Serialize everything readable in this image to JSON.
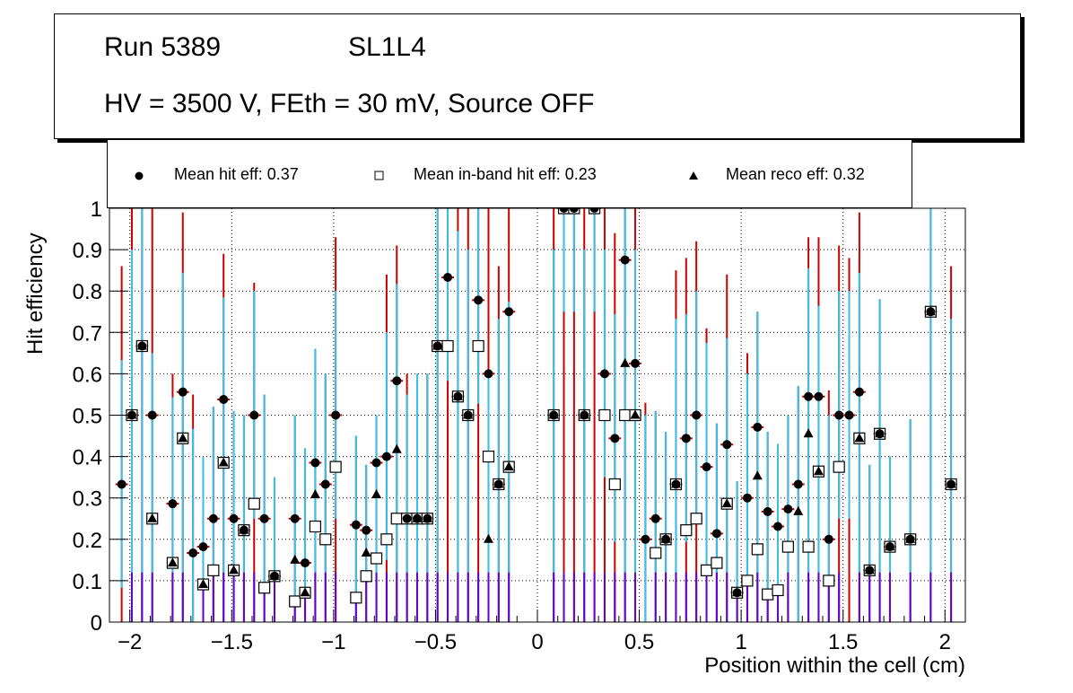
{
  "title_box": {
    "run": "Run 5389",
    "layer": "SL1L4",
    "conditions": "HV = 3500 V, FEth = 30 mV, Source OFF"
  },
  "legend": {
    "hit": "Mean hit  eff: 0.37",
    "inband": "Mean in-band hit eff: 0.23",
    "reco": "Mean reco eff: 0.32"
  },
  "colors": {
    "hit_err": "#cc0000",
    "reco_err": "#33c3ee",
    "inband_err": "#6600cc",
    "marker": "#000000"
  },
  "chart_data": {
    "type": "scatter",
    "title": "Run 5389 SL1L4 — HV = 3500 V, FEth = 30 mV, Source OFF",
    "xlabel": "Position within the cell (cm)",
    "ylabel": "Hit efficiency",
    "xlim": [
      -2.1,
      2.1
    ],
    "ylim": [
      0,
      1
    ],
    "grid": true,
    "legend_position": "top",
    "x_ticks": [
      "-2",
      "-1.5",
      "-1",
      "-0.5",
      "0",
      "0.5",
      "1",
      "1.5",
      "2"
    ],
    "x_tick_values": [
      -2,
      -1.5,
      -1,
      -0.5,
      0,
      0.5,
      1,
      1.5,
      2
    ],
    "y_ticks": [
      "0",
      "0.1",
      "0.2",
      "0.3",
      "0.4",
      "0.5",
      "0.6",
      "0.7",
      "0.8",
      "0.9",
      "1"
    ],
    "y_tick_values": [
      0,
      0.1,
      0.2,
      0.3,
      0.4,
      0.5,
      0.6,
      0.7,
      0.8,
      0.9,
      1
    ],
    "series": [
      {
        "name": "Mean hit eff",
        "marker": "circle",
        "mean": 0.37,
        "points": [
          {
            "x": -2.04,
            "y": 0.333,
            "lo": 0.0,
            "hi": 0.86
          },
          {
            "x": -1.99,
            "y": 0.5,
            "lo": 0.0,
            "hi": 1.0
          },
          {
            "x": -1.94,
            "y": 0.667,
            "lo": 0.0,
            "hi": 1.0
          },
          {
            "x": -1.89,
            "y": 0.5,
            "lo": 0.0,
            "hi": 1.0
          },
          {
            "x": -1.79,
            "y": 0.286,
            "lo": 0.0,
            "hi": 0.6
          },
          {
            "x": -1.74,
            "y": 0.556,
            "lo": 0.0,
            "hi": 0.99
          },
          {
            "x": -1.69,
            "y": 0.167,
            "lo": 0.0,
            "hi": 0.55
          },
          {
            "x": -1.64,
            "y": 0.182,
            "lo": 0.0,
            "hi": 0.4
          },
          {
            "x": -1.59,
            "y": 0.25,
            "lo": 0.0,
            "hi": 0.52
          },
          {
            "x": -1.54,
            "y": 0.538,
            "lo": 0.0,
            "hi": 0.89
          },
          {
            "x": -1.49,
            "y": 0.25,
            "lo": 0.0,
            "hi": 0.51
          },
          {
            "x": -1.44,
            "y": 0.222,
            "lo": 0.0,
            "hi": 0.5
          },
          {
            "x": -1.39,
            "y": 0.5,
            "lo": 0.0,
            "hi": 0.82
          },
          {
            "x": -1.34,
            "y": 0.25,
            "lo": 0.0,
            "hi": 0.55
          },
          {
            "x": -1.29,
            "y": 0.111,
            "lo": 0.0,
            "hi": 0.35
          },
          {
            "x": -1.19,
            "y": 0.25,
            "lo": 0.0,
            "hi": 0.5
          },
          {
            "x": -1.14,
            "y": 0.143,
            "lo": 0.0,
            "hi": 0.42
          },
          {
            "x": -1.09,
            "y": 0.385,
            "lo": 0.0,
            "hi": 0.66
          },
          {
            "x": -1.04,
            "y": 0.333,
            "lo": 0.0,
            "hi": 0.6
          },
          {
            "x": -0.99,
            "y": 0.5,
            "lo": 0.0,
            "hi": 0.93
          },
          {
            "x": -0.89,
            "y": 0.235,
            "lo": 0.0,
            "hi": 0.45
          },
          {
            "x": -0.84,
            "y": 0.222,
            "lo": 0.0,
            "hi": 0.38
          },
          {
            "x": -0.79,
            "y": 0.385,
            "lo": 0.0,
            "hi": 0.5
          },
          {
            "x": -0.74,
            "y": 0.4,
            "lo": 0.0,
            "hi": 0.84
          },
          {
            "x": -0.69,
            "y": 0.583,
            "lo": 0.0,
            "hi": 0.91
          },
          {
            "x": -0.64,
            "y": 0.25,
            "lo": 0.0,
            "hi": 0.6
          },
          {
            "x": -0.59,
            "y": 0.25,
            "lo": 0.0,
            "hi": 0.6
          },
          {
            "x": -0.54,
            "y": 0.25,
            "lo": 0.0,
            "hi": 0.6
          },
          {
            "x": -0.49,
            "y": 0.667,
            "lo": 0.0,
            "hi": 1.0
          },
          {
            "x": -0.44,
            "y": 0.833,
            "lo": 0.0,
            "hi": 1.0
          },
          {
            "x": -0.39,
            "y": 0.545,
            "lo": 0.0,
            "hi": 1.0
          },
          {
            "x": -0.34,
            "y": 0.5,
            "lo": 0.0,
            "hi": 1.0
          },
          {
            "x": -0.29,
            "y": 0.778,
            "lo": 0.0,
            "hi": 1.0
          },
          {
            "x": -0.24,
            "y": 0.6,
            "lo": 0.0,
            "hi": 1.0
          },
          {
            "x": -0.19,
            "y": 0.333,
            "lo": 0.0,
            "hi": 0.86
          },
          {
            "x": -0.14,
            "y": 0.75,
            "lo": 0.0,
            "hi": 1.0
          },
          {
            "x": 0.08,
            "y": 0.5,
            "lo": 0.0,
            "hi": 1.0
          },
          {
            "x": 0.13,
            "y": 1.0,
            "lo": 0.0,
            "hi": 1.0
          },
          {
            "x": 0.18,
            "y": 1.0,
            "lo": 0.0,
            "hi": 1.0
          },
          {
            "x": 0.23,
            "y": 0.5,
            "lo": 0.0,
            "hi": 1.0
          },
          {
            "x": 0.28,
            "y": 1.0,
            "lo": 0.0,
            "hi": 1.0
          },
          {
            "x": 0.33,
            "y": 0.6,
            "lo": 0.0,
            "hi": 1.0
          },
          {
            "x": 0.38,
            "y": 0.444,
            "lo": 0.0,
            "hi": 0.94
          },
          {
            "x": 0.43,
            "y": 0.875,
            "lo": 0.0,
            "hi": 1.0
          },
          {
            "x": 0.48,
            "y": 0.625,
            "lo": 0.0,
            "hi": 1.0
          },
          {
            "x": 0.53,
            "y": 0.2,
            "lo": 0.0,
            "hi": 0.53
          },
          {
            "x": 0.58,
            "y": 0.25,
            "lo": 0.0,
            "hi": 0.51
          },
          {
            "x": 0.63,
            "y": 0.2,
            "lo": 0.0,
            "hi": 0.46
          },
          {
            "x": 0.68,
            "y": 0.333,
            "lo": 0.0,
            "hi": 0.85
          },
          {
            "x": 0.73,
            "y": 0.444,
            "lo": 0.0,
            "hi": 0.88
          },
          {
            "x": 0.78,
            "y": 0.5,
            "lo": 0.0,
            "hi": 0.92
          },
          {
            "x": 0.83,
            "y": 0.375,
            "lo": 0.0,
            "hi": 0.71
          },
          {
            "x": 0.88,
            "y": 0.214,
            "lo": 0.0,
            "hi": 0.48
          },
          {
            "x": 0.93,
            "y": 0.429,
            "lo": 0.0,
            "hi": 0.84
          },
          {
            "x": 0.98,
            "y": 0.071,
            "lo": 0.0,
            "hi": 0.34
          },
          {
            "x": 1.03,
            "y": 0.3,
            "lo": 0.0,
            "hi": 0.65
          },
          {
            "x": 1.08,
            "y": 0.471,
            "lo": 0.0,
            "hi": 0.75
          },
          {
            "x": 1.13,
            "y": 0.267,
            "lo": 0.0,
            "hi": 0.46
          },
          {
            "x": 1.18,
            "y": 0.231,
            "lo": 0.0,
            "hi": 0.43
          },
          {
            "x": 1.23,
            "y": 0.273,
            "lo": 0.0,
            "hi": 0.5
          },
          {
            "x": 1.28,
            "y": 0.333,
            "lo": 0.0,
            "hi": 0.57
          },
          {
            "x": 1.33,
            "y": 0.545,
            "lo": 0.0,
            "hi": 0.93
          },
          {
            "x": 1.38,
            "y": 0.545,
            "lo": 0.0,
            "hi": 0.93
          },
          {
            "x": 1.43,
            "y": 0.2,
            "lo": 0.0,
            "hi": 0.56
          },
          {
            "x": 1.48,
            "y": 0.5,
            "lo": 0.0,
            "hi": 0.91
          },
          {
            "x": 1.53,
            "y": 0.5,
            "lo": 0.0,
            "hi": 0.88
          },
          {
            "x": 1.58,
            "y": 0.556,
            "lo": 0.0,
            "hi": 0.99
          },
          {
            "x": 1.63,
            "y": 0.125,
            "lo": 0.0,
            "hi": 0.38
          },
          {
            "x": 1.68,
            "y": 0.455,
            "lo": 0.0,
            "hi": 0.78
          },
          {
            "x": 1.73,
            "y": 0.182,
            "lo": 0.0,
            "hi": 0.4
          },
          {
            "x": 1.83,
            "y": 0.2,
            "lo": 0.0,
            "hi": 0.49
          },
          {
            "x": 1.93,
            "y": 0.75,
            "lo": 0.0,
            "hi": 1.0
          },
          {
            "x": 2.03,
            "y": 0.333,
            "lo": 0.0,
            "hi": 0.86
          }
        ]
      },
      {
        "name": "Mean in-band hit eff",
        "marker": "open-square",
        "mean": 0.23,
        "points": [
          {
            "x": -1.99,
            "y": 0.5
          },
          {
            "x": -1.94,
            "y": 0.667
          },
          {
            "x": -1.89,
            "y": 0.25
          },
          {
            "x": -1.79,
            "y": 0.143
          },
          {
            "x": -1.74,
            "y": 0.444
          },
          {
            "x": -1.64,
            "y": 0.091
          },
          {
            "x": -1.59,
            "y": 0.125
          },
          {
            "x": -1.54,
            "y": 0.385
          },
          {
            "x": -1.49,
            "y": 0.125
          },
          {
            "x": -1.44,
            "y": 0.222
          },
          {
            "x": -1.39,
            "y": 0.286
          },
          {
            "x": -1.34,
            "y": 0.083
          },
          {
            "x": -1.29,
            "y": 0.111
          },
          {
            "x": -1.19,
            "y": 0.05
          },
          {
            "x": -1.14,
            "y": 0.071
          },
          {
            "x": -1.09,
            "y": 0.231
          },
          {
            "x": -1.04,
            "y": 0.2
          },
          {
            "x": -0.99,
            "y": 0.375
          },
          {
            "x": -0.89,
            "y": 0.059
          },
          {
            "x": -0.84,
            "y": 0.111
          },
          {
            "x": -0.79,
            "y": 0.154
          },
          {
            "x": -0.74,
            "y": 0.2
          },
          {
            "x": -0.69,
            "y": 0.25
          },
          {
            "x": -0.64,
            "y": 0.25
          },
          {
            "x": -0.59,
            "y": 0.25
          },
          {
            "x": -0.54,
            "y": 0.25
          },
          {
            "x": -0.49,
            "y": 0.667
          },
          {
            "x": -0.44,
            "y": 0.667
          },
          {
            "x": -0.39,
            "y": 0.545
          },
          {
            "x": -0.34,
            "y": 0.5
          },
          {
            "x": -0.29,
            "y": 0.667
          },
          {
            "x": -0.24,
            "y": 0.4
          },
          {
            "x": -0.19,
            "y": 0.333
          },
          {
            "x": -0.14,
            "y": 0.375
          },
          {
            "x": 0.08,
            "y": 0.5
          },
          {
            "x": 0.13,
            "y": 1.0
          },
          {
            "x": 0.18,
            "y": 1.0
          },
          {
            "x": 0.23,
            "y": 0.5
          },
          {
            "x": 0.28,
            "y": 1.0
          },
          {
            "x": 0.33,
            "y": 0.5
          },
          {
            "x": 0.38,
            "y": 0.333
          },
          {
            "x": 0.43,
            "y": 0.5
          },
          {
            "x": 0.48,
            "y": 0.5
          },
          {
            "x": 0.58,
            "y": 0.167
          },
          {
            "x": 0.63,
            "y": 0.2
          },
          {
            "x": 0.68,
            "y": 0.333
          },
          {
            "x": 0.73,
            "y": 0.222
          },
          {
            "x": 0.78,
            "y": 0.25
          },
          {
            "x": 0.83,
            "y": 0.125
          },
          {
            "x": 0.88,
            "y": 0.143
          },
          {
            "x": 0.93,
            "y": 0.286
          },
          {
            "x": 0.98,
            "y": 0.071
          },
          {
            "x": 1.03,
            "y": 0.1
          },
          {
            "x": 1.08,
            "y": 0.176
          },
          {
            "x": 1.13,
            "y": 0.067
          },
          {
            "x": 1.18,
            "y": 0.077
          },
          {
            "x": 1.23,
            "y": 0.182
          },
          {
            "x": 1.33,
            "y": 0.182
          },
          {
            "x": 1.38,
            "y": 0.364
          },
          {
            "x": 1.43,
            "y": 0.1
          },
          {
            "x": 1.48,
            "y": 0.375
          },
          {
            "x": 1.58,
            "y": 0.444
          },
          {
            "x": 1.63,
            "y": 0.125
          },
          {
            "x": 1.68,
            "y": 0.455
          },
          {
            "x": 1.73,
            "y": 0.182
          },
          {
            "x": 1.83,
            "y": 0.2
          },
          {
            "x": 1.93,
            "y": 0.75
          },
          {
            "x": 2.03,
            "y": 0.333
          }
        ]
      },
      {
        "name": "Mean reco eff",
        "marker": "triangle",
        "mean": 0.32,
        "points": [
          {
            "x": -1.99,
            "y": 0.5
          },
          {
            "x": -1.94,
            "y": 0.667
          },
          {
            "x": -1.89,
            "y": 0.25
          },
          {
            "x": -1.79,
            "y": 0.143
          },
          {
            "x": -1.74,
            "y": 0.444
          },
          {
            "x": -1.64,
            "y": 0.091
          },
          {
            "x": -1.54,
            "y": 0.385
          },
          {
            "x": -1.49,
            "y": 0.125
          },
          {
            "x": -1.44,
            "y": 0.222
          },
          {
            "x": -1.29,
            "y": 0.111
          },
          {
            "x": -1.19,
            "y": 0.15
          },
          {
            "x": -1.14,
            "y": 0.071
          },
          {
            "x": -1.09,
            "y": 0.308
          },
          {
            "x": -0.84,
            "y": 0.167
          },
          {
            "x": -0.79,
            "y": 0.308
          },
          {
            "x": -0.69,
            "y": 0.417
          },
          {
            "x": -0.59,
            "y": 0.25
          },
          {
            "x": -0.54,
            "y": 0.25
          },
          {
            "x": -0.49,
            "y": 0.667
          },
          {
            "x": -0.39,
            "y": 0.545
          },
          {
            "x": -0.34,
            "y": 0.5
          },
          {
            "x": -0.24,
            "y": 0.2
          },
          {
            "x": -0.19,
            "y": 0.333
          },
          {
            "x": -0.14,
            "y": 0.375
          },
          {
            "x": 0.08,
            "y": 0.5
          },
          {
            "x": 0.23,
            "y": 0.5
          },
          {
            "x": 0.43,
            "y": 0.625
          },
          {
            "x": 0.48,
            "y": 0.5
          },
          {
            "x": 0.63,
            "y": 0.2
          },
          {
            "x": 0.68,
            "y": 0.333
          },
          {
            "x": 0.93,
            "y": 0.286
          },
          {
            "x": 0.98,
            "y": 0.071
          },
          {
            "x": 1.08,
            "y": 0.353
          },
          {
            "x": 1.28,
            "y": 0.267
          },
          {
            "x": 1.33,
            "y": 0.455
          },
          {
            "x": 1.38,
            "y": 0.364
          },
          {
            "x": 1.58,
            "y": 0.444
          },
          {
            "x": 1.63,
            "y": 0.125
          },
          {
            "x": 1.68,
            "y": 0.455
          },
          {
            "x": 1.73,
            "y": 0.182
          },
          {
            "x": 1.83,
            "y": 0.2
          },
          {
            "x": 1.93,
            "y": 0.75
          },
          {
            "x": 2.03,
            "y": 0.333
          }
        ]
      }
    ]
  }
}
